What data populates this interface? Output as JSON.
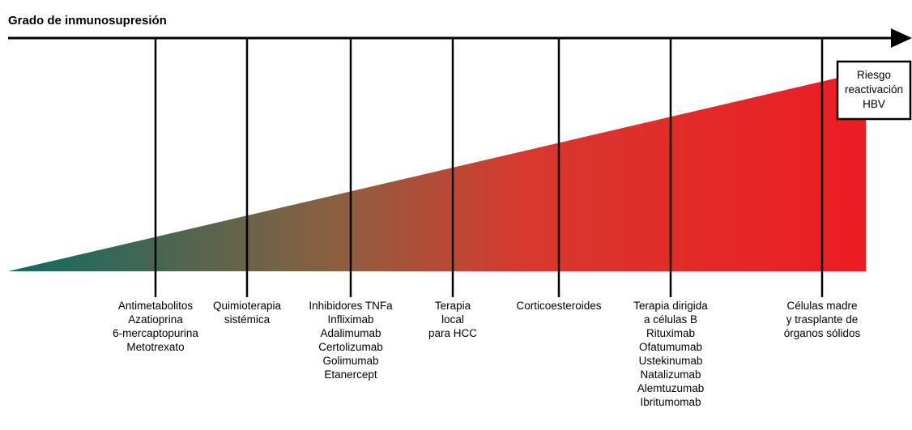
{
  "title": "Grado de inmunosupresión",
  "colors": {
    "gradient_start": "#0f6b62",
    "gradient_mid": "#d7392e",
    "gradient_end": "#ed1c24",
    "axis": "#000000"
  },
  "risk_box": {
    "lines": [
      "Riesgo",
      "reactivación",
      "HBV"
    ]
  },
  "categories": [
    {
      "id": "antimetabolitos",
      "lines": [
        "Antimetabolitos",
        "Azatioprina",
        "6-mercaptopurina",
        "Metotrexato"
      ]
    },
    {
      "id": "quimioterapia",
      "lines": [
        "Quimioterapia",
        "sistémica"
      ]
    },
    {
      "id": "tnfa",
      "lines": [
        "Inhibidores TNFa",
        "Infliximab",
        "Adalimumab",
        "Certolizumab",
        "Golimumab",
        "Etanercept"
      ]
    },
    {
      "id": "terapia-local",
      "lines": [
        "Terapia",
        "local",
        "para HCC"
      ]
    },
    {
      "id": "corticoesteroides",
      "lines": [
        "Corticoesteroides"
      ]
    },
    {
      "id": "celulas-b",
      "lines": [
        "Terapia dirigida",
        "a células B",
        "Rituximab",
        "Ofatumumab",
        "Ustekinumab",
        "Natalizumab",
        "Alemtuzumab",
        "Ibritumomab"
      ]
    },
    {
      "id": "trasplante",
      "lines": [
        "Células madre",
        "y trasplante de",
        "órganos sólidos"
      ]
    }
  ]
}
